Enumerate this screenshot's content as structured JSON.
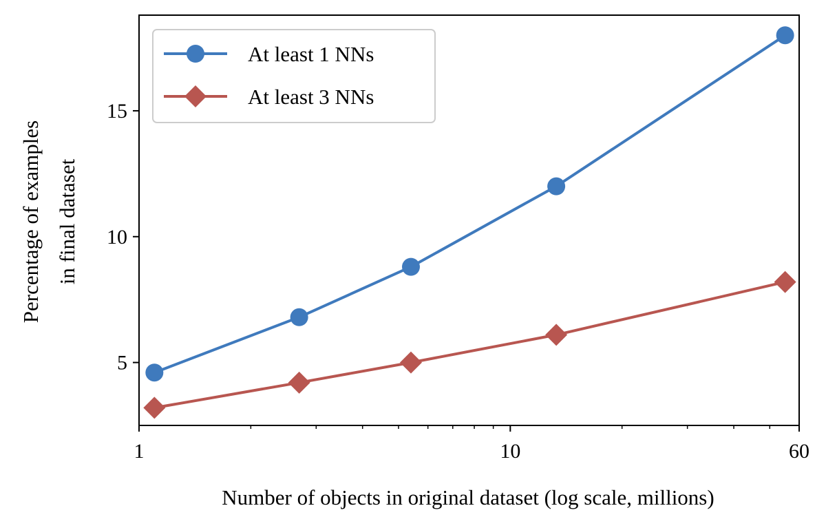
{
  "chart_data": {
    "type": "line",
    "x_scale": "log",
    "xlim": [
      1,
      60
    ],
    "ylim": [
      2.5,
      18.8
    ],
    "xlabel": "Number of objects in original dataset (log scale, millions)",
    "ylabel_lines": [
      "Percentage of examples",
      "in final dataset"
    ],
    "x_ticks": [
      {
        "value": 1,
        "label": "1"
      },
      {
        "value": 10,
        "label": "10"
      },
      {
        "value": 60,
        "label": "60"
      }
    ],
    "x_minor_ticks": [
      2,
      3,
      4,
      5,
      6,
      7,
      8,
      9,
      20,
      30,
      40,
      50
    ],
    "y_ticks": [
      {
        "value": 5,
        "label": "5"
      },
      {
        "value": 10,
        "label": "10"
      },
      {
        "value": 15,
        "label": "15"
      }
    ],
    "legend_position": "top-left",
    "series": [
      {
        "name": "At least 1 NNs",
        "color": "#3f7abd",
        "marker": "circle",
        "x": [
          1.1,
          2.7,
          5.4,
          13.3,
          55
        ],
        "values": [
          4.6,
          6.8,
          8.8,
          12.0,
          18.0
        ]
      },
      {
        "name": "At least 3 NNs",
        "color": "#b85650",
        "marker": "diamond",
        "x": [
          1.1,
          2.7,
          5.4,
          13.3,
          55
        ],
        "values": [
          3.2,
          4.2,
          5.0,
          6.1,
          8.2
        ]
      }
    ]
  }
}
